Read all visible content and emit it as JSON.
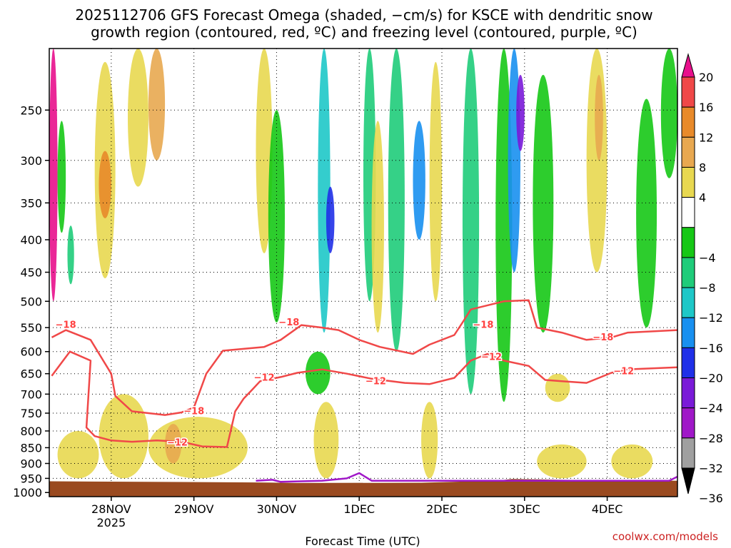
{
  "chart_data": {
    "type": "heatmap",
    "title_line1": "2025112706 GFS Forecast Omega (shaded, −cm/s) for KSCE with dendritic snow",
    "title_line2": "growth region (contoured, red, ºC) and freezing level (contoured, purple, ºC)",
    "xlabel": "Forecast Time (UTC)",
    "ylabel": "",
    "credit": "coolwx.com/models",
    "x_range_days": [
      0,
      7.6
    ],
    "x_start_label": "27NOV 2025 06Z",
    "x_ticks": [
      {
        "day": 0.75,
        "label": "28NOV",
        "sub": "2025"
      },
      {
        "day": 1.75,
        "label": "29NOV",
        "sub": ""
      },
      {
        "day": 2.75,
        "label": "30NOV",
        "sub": ""
      },
      {
        "day": 3.75,
        "label": "1DEC",
        "sub": ""
      },
      {
        "day": 4.75,
        "label": "2DEC",
        "sub": ""
      },
      {
        "day": 5.75,
        "label": "3DEC",
        "sub": ""
      },
      {
        "day": 6.75,
        "label": "4DEC",
        "sub": ""
      }
    ],
    "y_ticks": [
      250,
      300,
      350,
      400,
      450,
      500,
      550,
      600,
      650,
      700,
      750,
      800,
      850,
      900,
      950,
      1000
    ],
    "y_range_hpa": [
      1015,
      200
    ],
    "colorbar": {
      "labels": [
        "20",
        "16",
        "12",
        "8",
        "4",
        "−4",
        "−8",
        "−12",
        "−16",
        "−20",
        "−24",
        "−28",
        "−32",
        "−36"
      ],
      "bins": [
        {
          "range": ">20",
          "color": "#e8108c"
        },
        {
          "range": "16 to 20",
          "color": "#f04848"
        },
        {
          "range": "12 to 16",
          "color": "#e88a2a"
        },
        {
          "range": "8 to 12",
          "color": "#e8a850"
        },
        {
          "range": "4 to 8",
          "color": "#e8d850"
        },
        {
          "range": "-4 to 4",
          "color": "#ffffff"
        },
        {
          "range": "-8 to -4",
          "color": "#16c816"
        },
        {
          "range": "-12 to -8",
          "color": "#1fcc7a"
        },
        {
          "range": "-16 to -12",
          "color": "#1ec8c8"
        },
        {
          "range": "-20 to -16",
          "color": "#1890f0"
        },
        {
          "range": "-24 to -20",
          "color": "#2030e8"
        },
        {
          "range": "-28 to -24",
          "color": "#7a1ad8"
        },
        {
          "range": "-32 to -28",
          "color": "#a018c8"
        },
        {
          "range": "-36 to -32",
          "color": "#a0a0a0"
        },
        {
          "range": "<-36",
          "color": "#000000"
        }
      ]
    },
    "terrain_color": "#9a4a20",
    "surface_pressure_hpa": [
      [
        0,
        960
      ],
      [
        2.5,
        964
      ],
      [
        3.0,
        966
      ],
      [
        4.5,
        965
      ],
      [
        5.4,
        958
      ],
      [
        5.6,
        952
      ],
      [
        6.2,
        955
      ],
      [
        7.6,
        958
      ]
    ],
    "contours": [
      {
        "name": "-18C",
        "label": "−18",
        "color": "#f04848",
        "points": [
          [
            0.03,
            570
          ],
          [
            0.2,
            555
          ],
          [
            0.5,
            575
          ],
          [
            0.75,
            650
          ],
          [
            0.8,
            705
          ],
          [
            1.0,
            745
          ],
          [
            1.4,
            755
          ],
          [
            1.6,
            748
          ],
          [
            1.75,
            735
          ],
          [
            1.9,
            650
          ],
          [
            2.1,
            598
          ],
          [
            2.6,
            590
          ],
          [
            2.8,
            575
          ],
          [
            3.05,
            545
          ],
          [
            3.3,
            550
          ],
          [
            3.5,
            555
          ],
          [
            3.75,
            575
          ],
          [
            4.0,
            590
          ],
          [
            4.4,
            605
          ],
          [
            4.6,
            585
          ],
          [
            4.9,
            565
          ],
          [
            5.0,
            540
          ],
          [
            5.1,
            515
          ],
          [
            5.5,
            500
          ],
          [
            5.8,
            498
          ],
          [
            5.9,
            550
          ],
          [
            6.2,
            560
          ],
          [
            6.5,
            575
          ],
          [
            6.8,
            570
          ],
          [
            7.0,
            560
          ],
          [
            7.6,
            555
          ]
        ],
        "label_positions": [
          [
            0.2,
            545
          ],
          [
            2.9,
            540
          ],
          [
            5.25,
            545
          ],
          [
            6.7,
            570
          ],
          [
            1.75,
            745
          ]
        ]
      },
      {
        "name": "-12C",
        "label": "−12",
        "color": "#f04848",
        "points": [
          [
            0.03,
            655
          ],
          [
            0.25,
            600
          ],
          [
            0.5,
            620
          ],
          [
            0.45,
            790
          ],
          [
            0.55,
            815
          ],
          [
            0.75,
            828
          ],
          [
            1.0,
            832
          ],
          [
            1.3,
            828
          ],
          [
            1.6,
            832
          ],
          [
            1.85,
            846
          ],
          [
            2.15,
            848
          ],
          [
            2.25,
            745
          ],
          [
            2.35,
            712
          ],
          [
            2.45,
            690
          ],
          [
            2.55,
            668
          ],
          [
            2.8,
            658
          ],
          [
            3.0,
            648
          ],
          [
            3.3,
            640
          ],
          [
            3.6,
            650
          ],
          [
            3.9,
            662
          ],
          [
            4.3,
            672
          ],
          [
            4.6,
            675
          ],
          [
            4.9,
            660
          ],
          [
            5.1,
            620
          ],
          [
            5.3,
            605
          ],
          [
            5.5,
            620
          ],
          [
            5.8,
            632
          ],
          [
            6.0,
            665
          ],
          [
            6.2,
            668
          ],
          [
            6.5,
            672
          ],
          [
            6.8,
            648
          ],
          [
            7.0,
            640
          ],
          [
            7.6,
            635
          ]
        ],
        "label_positions": [
          [
            2.6,
            660
          ],
          [
            3.95,
            668
          ],
          [
            5.35,
            612
          ],
          [
            6.95,
            645
          ],
          [
            1.55,
            835
          ]
        ]
      },
      {
        "name": "freezing",
        "label": "",
        "color": "#a018c8",
        "points": [
          [
            2.5,
            958
          ],
          [
            2.7,
            955
          ],
          [
            2.8,
            962
          ],
          [
            3.3,
            958
          ],
          [
            3.6,
            950
          ],
          [
            3.75,
            932
          ],
          [
            3.9,
            958
          ],
          [
            7.5,
            958
          ],
          [
            7.6,
            944
          ]
        ],
        "label_positions": []
      }
    ],
    "shading_blobs": [
      {
        "t0": 0.0,
        "t1": 0.1,
        "p0": 200,
        "p1": 500,
        "cat": "20+"
      },
      {
        "t0": 0.1,
        "t1": 0.2,
        "p0": 260,
        "p1": 390,
        "cat": "-8"
      },
      {
        "t0": 0.22,
        "t1": 0.3,
        "p0": 380,
        "p1": 470,
        "cat": "-12"
      },
      {
        "t0": 0.55,
        "t1": 0.8,
        "p0": 210,
        "p1": 460,
        "cat": "4"
      },
      {
        "t0": 0.6,
        "t1": 0.75,
        "p0": 290,
        "p1": 370,
        "cat": "12"
      },
      {
        "t0": 0.95,
        "t1": 1.2,
        "p0": 200,
        "p1": 330,
        "cat": "4"
      },
      {
        "t0": 1.2,
        "t1": 1.4,
        "p0": 200,
        "p1": 300,
        "cat": "8"
      },
      {
        "t0": 2.5,
        "t1": 2.7,
        "p0": 200,
        "p1": 420,
        "cat": "4"
      },
      {
        "t0": 2.65,
        "t1": 2.85,
        "p0": 250,
        "p1": 540,
        "cat": "-8"
      },
      {
        "t0": 3.25,
        "t1": 3.4,
        "p0": 200,
        "p1": 560,
        "cat": "-16"
      },
      {
        "t0": 3.35,
        "t1": 3.45,
        "p0": 330,
        "p1": 420,
        "cat": "-24"
      },
      {
        "t0": 3.8,
        "t1": 3.95,
        "p0": 200,
        "p1": 500,
        "cat": "-12"
      },
      {
        "t0": 3.9,
        "t1": 4.05,
        "p0": 260,
        "p1": 560,
        "cat": "4"
      },
      {
        "t0": 4.1,
        "t1": 4.3,
        "p0": 200,
        "p1": 600,
        "cat": "-12"
      },
      {
        "t0": 4.4,
        "t1": 4.55,
        "p0": 260,
        "p1": 400,
        "cat": "-20"
      },
      {
        "t0": 4.6,
        "t1": 4.75,
        "p0": 210,
        "p1": 500,
        "cat": "4"
      },
      {
        "t0": 5.0,
        "t1": 5.2,
        "p0": 200,
        "p1": 700,
        "cat": "-12"
      },
      {
        "t0": 5.4,
        "t1": 5.6,
        "p0": 200,
        "p1": 720,
        "cat": "-8"
      },
      {
        "t0": 5.55,
        "t1": 5.7,
        "p0": 200,
        "p1": 450,
        "cat": "-20"
      },
      {
        "t0": 5.65,
        "t1": 5.75,
        "p0": 220,
        "p1": 290,
        "cat": "-28"
      },
      {
        "t0": 5.85,
        "t1": 6.1,
        "p0": 220,
        "p1": 560,
        "cat": "-8"
      },
      {
        "t0": 6.5,
        "t1": 6.75,
        "p0": 200,
        "p1": 450,
        "cat": "4"
      },
      {
        "t0": 6.6,
        "t1": 6.7,
        "p0": 220,
        "p1": 300,
        "cat": "8"
      },
      {
        "t0": 7.1,
        "t1": 7.35,
        "p0": 240,
        "p1": 550,
        "cat": "-8"
      },
      {
        "t0": 7.4,
        "t1": 7.6,
        "p0": 200,
        "p1": 320,
        "cat": "-8"
      },
      {
        "t0": 0.1,
        "t1": 0.6,
        "p0": 800,
        "p1": 950,
        "cat": "4"
      },
      {
        "t0": 0.6,
        "t1": 1.2,
        "p0": 700,
        "p1": 950,
        "cat": "4"
      },
      {
        "t0": 1.2,
        "t1": 2.4,
        "p0": 760,
        "p1": 950,
        "cat": "4"
      },
      {
        "t0": 1.4,
        "t1": 1.6,
        "p0": 780,
        "p1": 900,
        "cat": "8"
      },
      {
        "t0": 3.1,
        "t1": 3.4,
        "p0": 600,
        "p1": 700,
        "cat": "-8"
      },
      {
        "t0": 3.2,
        "t1": 3.5,
        "p0": 720,
        "p1": 950,
        "cat": "4"
      },
      {
        "t0": 4.5,
        "t1": 4.7,
        "p0": 720,
        "p1": 950,
        "cat": "4"
      },
      {
        "t0": 5.9,
        "t1": 6.5,
        "p0": 840,
        "p1": 950,
        "cat": "4"
      },
      {
        "t0": 6.8,
        "t1": 7.3,
        "p0": 840,
        "p1": 950,
        "cat": "4"
      },
      {
        "t0": 6.0,
        "t1": 6.3,
        "p0": 650,
        "p1": 720,
        "cat": "4"
      }
    ]
  }
}
